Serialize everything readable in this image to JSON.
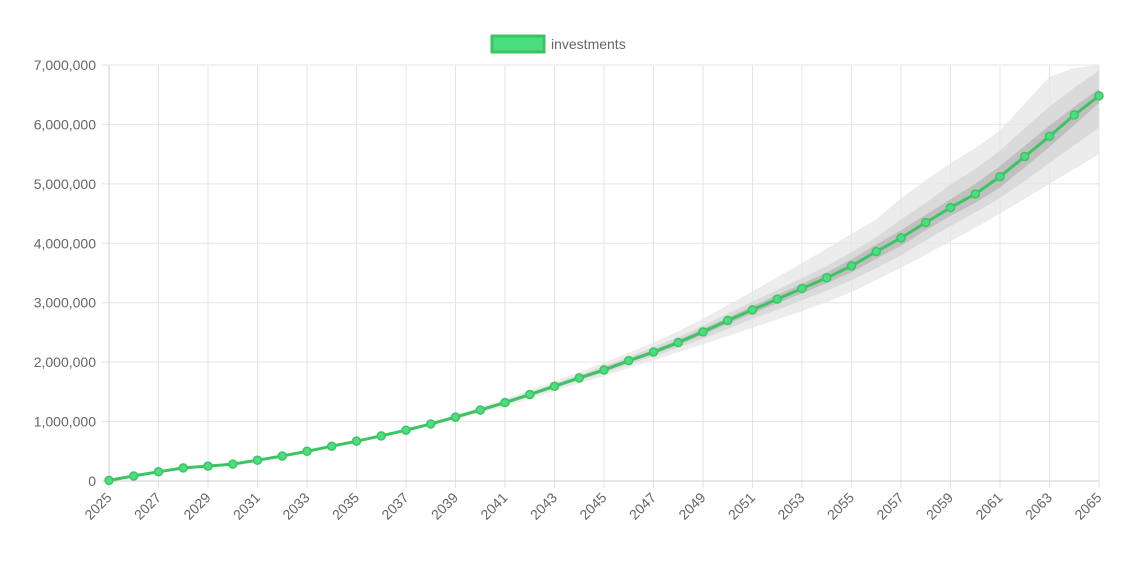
{
  "chart_data": {
    "type": "line",
    "legend_position": "top-center",
    "grid": true,
    "x": [
      2025,
      2026,
      2027,
      2028,
      2029,
      2030,
      2031,
      2032,
      2033,
      2034,
      2035,
      2036,
      2037,
      2038,
      2039,
      2040,
      2041,
      2042,
      2043,
      2044,
      2045,
      2046,
      2047,
      2048,
      2049,
      2050,
      2051,
      2052,
      2053,
      2054,
      2055,
      2056,
      2057,
      2058,
      2059,
      2060,
      2061,
      2062,
      2063,
      2064,
      2065
    ],
    "x_tick_labels": [
      "2025",
      "2027",
      "2029",
      "2031",
      "2033",
      "2035",
      "2037",
      "2039",
      "2041",
      "2043",
      "2045",
      "2047",
      "2049",
      "2051",
      "2053",
      "2055",
      "2057",
      "2059",
      "2061",
      "2063",
      "2065"
    ],
    "ylim": [
      0,
      7000000
    ],
    "y_tick_labels": [
      "0",
      "1,000,000",
      "2,000,000",
      "3,000,000",
      "4,000,000",
      "5,000,000",
      "6,000,000",
      "7,000,000"
    ],
    "series": [
      {
        "name": "investments",
        "color": "#3cc463",
        "fill_color": "#4ade80",
        "values": [
          10000,
          85000,
          155000,
          220000,
          250000,
          285000,
          350000,
          420000,
          500000,
          585000,
          670000,
          760000,
          855000,
          960000,
          1075000,
          1195000,
          1320000,
          1455000,
          1595000,
          1735000,
          1870000,
          2025000,
          2170000,
          2330000,
          2510000,
          2700000,
          2880000,
          3060000,
          3240000,
          3420000,
          3620000,
          3860000,
          4090000,
          4350000,
          4600000,
          4830000,
          5120000,
          5460000,
          5800000,
          6160000,
          6480000
        ]
      }
    ],
    "bands": [
      {
        "color": "#e5e5e5",
        "upper": [
          10000,
          85000,
          155000,
          220000,
          250000,
          285000,
          350000,
          420000,
          500000,
          590000,
          680000,
          775000,
          875000,
          990000,
          1115000,
          1245000,
          1385000,
          1530000,
          1680000,
          1835000,
          1990000,
          2160000,
          2330000,
          2520000,
          2730000,
          2960000,
          3190000,
          3430000,
          3670000,
          3910000,
          4160000,
          4400000,
          4760000,
          5060000,
          5350000,
          5600000,
          5900000,
          6350000,
          6800000,
          6950000,
          7000000
        ],
        "lower": [
          10000,
          85000,
          155000,
          220000,
          250000,
          285000,
          350000,
          420000,
          500000,
          580000,
          660000,
          745000,
          835000,
          930000,
          1035000,
          1145000,
          1255000,
          1380000,
          1510000,
          1640000,
          1765000,
          1900000,
          2030000,
          2165000,
          2300000,
          2440000,
          2580000,
          2720000,
          2860000,
          3010000,
          3180000,
          3380000,
          3590000,
          3810000,
          4030000,
          4260000,
          4500000,
          4750000,
          5000000,
          5250000,
          5500000
        ]
      },
      {
        "color": "#d4d4d4",
        "upper": [
          10000,
          85000,
          155000,
          220000,
          250000,
          285000,
          350000,
          420000,
          500000,
          588000,
          675000,
          768000,
          865000,
          975000,
          1095000,
          1220000,
          1352000,
          1492000,
          1637000,
          1785000,
          1930000,
          2092000,
          2250000,
          2425000,
          2615000,
          2818000,
          3015000,
          3215000,
          3415000,
          3620000,
          3850000,
          4100000,
          4400000,
          4680000,
          4990000,
          5250000,
          5560000,
          5940000,
          6300000,
          6620000,
          6900000
        ],
        "lower": [
          10000,
          85000,
          155000,
          220000,
          250000,
          285000,
          350000,
          420000,
          500000,
          582000,
          665000,
          752000,
          845000,
          945000,
          1055000,
          1170000,
          1288000,
          1418000,
          1553000,
          1690000,
          1818000,
          1962000,
          2100000,
          2245000,
          2395000,
          2560000,
          2730000,
          2880000,
          3040000,
          3200000,
          3380000,
          3580000,
          3800000,
          4050000,
          4290000,
          4520000,
          4760000,
          5050000,
          5350000,
          5650000,
          5950000
        ]
      },
      {
        "color": "#b5b5b5",
        "upper": [
          10000,
          85000,
          155000,
          220000,
          250000,
          285000,
          350000,
          420000,
          500000,
          586000,
          672000,
          764000,
          860000,
          967000,
          1085000,
          1208000,
          1336000,
          1474000,
          1617000,
          1761000,
          1900000,
          2058000,
          2205000,
          2372000,
          2557000,
          2750000,
          2940000,
          3130000,
          3320000,
          3510000,
          3730000,
          3980000,
          4220000,
          4480000,
          4740000,
          5000000,
          5300000,
          5640000,
          5980000,
          6300000,
          6600000
        ],
        "lower": [
          10000,
          85000,
          155000,
          220000,
          250000,
          285000,
          350000,
          420000,
          500000,
          584000,
          668000,
          756000,
          850000,
          953000,
          1065000,
          1182000,
          1304000,
          1436000,
          1573000,
          1709000,
          1840000,
          1992000,
          2135000,
          2288000,
          2463000,
          2650000,
          2820000,
          2990000,
          3160000,
          3330000,
          3510000,
          3740000,
          3960000,
          4220000,
          4460000,
          4680000,
          4940000,
          5280000,
          5620000,
          5990000,
          6360000
        ]
      }
    ]
  }
}
